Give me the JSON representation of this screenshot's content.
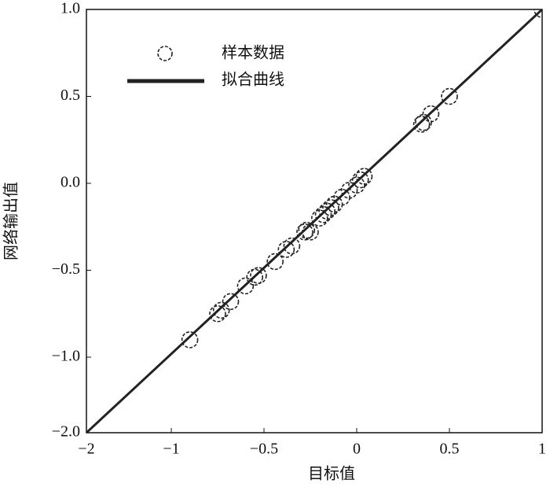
{
  "chart_data": {
    "type": "scatter",
    "xlabel": "目标值",
    "ylabel": "网络输出值",
    "xlim": [
      -2,
      1
    ],
    "ylim": [
      -2,
      1
    ],
    "xticks": [
      {
        "value": -2,
        "label": "−2"
      },
      {
        "value": -1,
        "label": "−1"
      },
      {
        "value": -0.5,
        "label": "−0.5"
      },
      0,
      0.5,
      1
    ],
    "yticks": [
      {
        "value": -2,
        "label": "−2.0"
      },
      {
        "value": -1,
        "label": "−1.0"
      },
      {
        "value": -0.5,
        "label": "−0.5"
      },
      {
        "value": 0,
        "label": "0.0"
      },
      0.5,
      {
        "value": 1,
        "label": "1.0"
      }
    ],
    "legend": "upper left",
    "series": [
      {
        "name": "样本数据",
        "color": "#222222",
        "x": [
          -0.9,
          -0.75,
          -0.73,
          -0.68,
          -0.6,
          -0.55,
          -0.53,
          -0.44,
          -0.38,
          -0.35,
          -0.28,
          -0.27,
          -0.25,
          -0.2,
          -0.18,
          -0.16,
          -0.14,
          -0.12,
          -0.08,
          -0.04,
          0,
          0.02,
          0.04,
          0.35,
          0.36,
          0.4,
          0.5,
          1
        ],
        "values": [
          -0.9,
          -0.75,
          -0.73,
          -0.68,
          -0.59,
          -0.54,
          -0.53,
          -0.45,
          -0.38,
          -0.36,
          -0.28,
          -0.27,
          -0.28,
          -0.2,
          -0.18,
          -0.16,
          -0.14,
          -0.12,
          -0.08,
          -0.04,
          -0.01,
          0.02,
          0.04,
          0.34,
          0.35,
          0.4,
          0.5,
          1
        ]
      },
      {
        "name": "拟合曲线",
        "color": "#222222",
        "x": [
          -2,
          1
        ],
        "values": [
          -2,
          1
        ]
      }
    ]
  }
}
